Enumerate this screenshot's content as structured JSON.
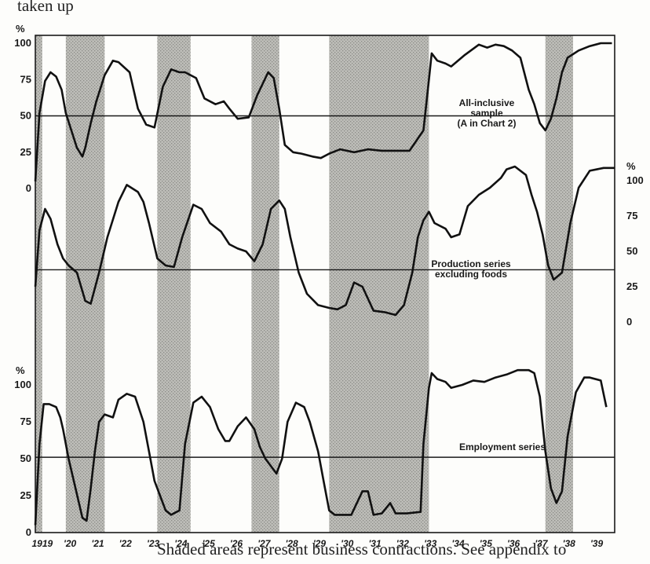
{
  "top_caption": "taken up",
  "bottom_caption": "Shaded areas represent business contractions. See appendix to",
  "chart_data": {
    "type": "line",
    "x_unit": "year",
    "xlim": [
      1919.0,
      1939.9
    ],
    "contractions": [
      [
        1919.0,
        1919.25
      ],
      [
        1920.1,
        1921.5
      ],
      [
        1923.4,
        1924.6
      ],
      [
        1926.8,
        1927.8
      ],
      [
        1929.6,
        1933.2
      ],
      [
        1937.4,
        1938.4
      ]
    ],
    "x_tick_labels": [
      {
        "x": 1919.25,
        "label": "1919"
      },
      {
        "x": 1920.25,
        "label": "'20"
      },
      {
        "x": 1921.25,
        "label": "'21"
      },
      {
        "x": 1922.25,
        "label": "'22"
      },
      {
        "x": 1923.25,
        "label": "'23"
      },
      {
        "x": 1924.25,
        "label": "'24"
      },
      {
        "x": 1925.25,
        "label": "'25"
      },
      {
        "x": 1926.25,
        "label": "'26"
      },
      {
        "x": 1927.25,
        "label": "'27"
      },
      {
        "x": 1928.25,
        "label": "'28"
      },
      {
        "x": 1929.25,
        "label": "'29"
      },
      {
        "x": 1930.25,
        "label": "'30"
      },
      {
        "x": 1931.25,
        "label": "'31"
      },
      {
        "x": 1932.25,
        "label": "'32"
      },
      {
        "x": 1933.25,
        "label": "'33"
      },
      {
        "x": 1934.25,
        "label": "'34"
      },
      {
        "x": 1935.25,
        "label": "'35"
      },
      {
        "x": 1936.25,
        "label": "'36"
      },
      {
        "x": 1937.25,
        "label": "'37"
      },
      {
        "x": 1938.25,
        "label": "'38"
      },
      {
        "x": 1939.25,
        "label": "'39"
      }
    ],
    "panels": [
      {
        "name": "all-inclusive",
        "label_lines": [
          "All-inclusive",
          "sample",
          "(A in Chart 2)"
        ],
        "y_unit_label": "%",
        "y_ticks": [
          "100",
          "75",
          "50",
          "25",
          "0"
        ],
        "axis_side": "left",
        "ref_level": 50,
        "x": [
          1919.0,
          1919.15,
          1919.35,
          1919.55,
          1919.75,
          1919.95,
          1920.1,
          1920.3,
          1920.5,
          1920.7,
          1920.8,
          1921.0,
          1921.2,
          1921.5,
          1921.8,
          1922.0,
          1922.4,
          1922.7,
          1923.0,
          1923.3,
          1923.6,
          1923.9,
          1924.2,
          1924.4,
          1924.8,
          1925.1,
          1925.5,
          1925.8,
          1926.0,
          1926.3,
          1926.7,
          1927.0,
          1927.4,
          1927.6,
          1927.8,
          1928.0,
          1928.3,
          1928.6,
          1929.0,
          1929.3,
          1929.6,
          1930.0,
          1930.5,
          1931.0,
          1931.5,
          1932.0,
          1932.5,
          1933.0,
          1933.2,
          1933.3,
          1933.5,
          1933.8,
          1934.0,
          1934.5,
          1935.0,
          1935.3,
          1935.6,
          1935.9,
          1936.2,
          1936.5,
          1936.8,
          1937.0,
          1937.2,
          1937.4,
          1937.6,
          1937.8,
          1938.0,
          1938.2,
          1938.6,
          1939.0,
          1939.4,
          1939.8
        ],
        "y": [
          5,
          52,
          74,
          80,
          77,
          68,
          52,
          40,
          28,
          22,
          28,
          45,
          60,
          78,
          88,
          87,
          80,
          55,
          44,
          42,
          70,
          82,
          80,
          80,
          76,
          62,
          58,
          60,
          55,
          48,
          49,
          64,
          80,
          76,
          55,
          30,
          25,
          24,
          22,
          21,
          24,
          27,
          25,
          27,
          26,
          26,
          26,
          40,
          75,
          93,
          88,
          86,
          84,
          92,
          99,
          97,
          99,
          98,
          95,
          90,
          68,
          58,
          45,
          40,
          48,
          62,
          80,
          90,
          95,
          98,
          100,
          100
        ]
      },
      {
        "name": "production",
        "label_lines": [
          "Production series",
          "excluding foods"
        ],
        "y_unit_label": "%",
        "y_ticks": [
          "100",
          "75",
          "50",
          "25",
          "0"
        ],
        "axis_side": "right",
        "ref_level": 37,
        "x": [
          1919.0,
          1919.15,
          1919.35,
          1919.55,
          1919.8,
          1920.0,
          1920.2,
          1920.5,
          1920.8,
          1921.0,
          1921.3,
          1921.6,
          1922.0,
          1922.3,
          1922.7,
          1922.9,
          1923.1,
          1923.4,
          1923.7,
          1924.0,
          1924.3,
          1924.7,
          1925.0,
          1925.3,
          1925.7,
          1926.0,
          1926.3,
          1926.6,
          1926.9,
          1927.2,
          1927.5,
          1927.8,
          1928.0,
          1928.2,
          1928.5,
          1928.8,
          1929.2,
          1929.6,
          1929.9,
          1930.2,
          1930.5,
          1930.8,
          1931.2,
          1931.6,
          1932.0,
          1932.3,
          1932.6,
          1932.8,
          1933.0,
          1933.2,
          1933.4,
          1933.8,
          1934.0,
          1934.3,
          1934.6,
          1935.0,
          1935.4,
          1935.8,
          1936.0,
          1936.3,
          1936.7,
          1936.9,
          1937.1,
          1937.3,
          1937.5,
          1937.7,
          1938.0,
          1938.3,
          1938.6,
          1939.0,
          1939.5,
          1939.9
        ],
        "y": [
          25,
          65,
          80,
          73,
          55,
          45,
          40,
          35,
          15,
          13,
          35,
          60,
          85,
          97,
          92,
          85,
          70,
          45,
          40,
          39,
          60,
          83,
          80,
          70,
          64,
          55,
          52,
          50,
          43,
          55,
          80,
          86,
          80,
          60,
          35,
          20,
          12,
          10,
          9,
          12,
          28,
          25,
          8,
          7,
          5,
          12,
          35,
          60,
          72,
          78,
          70,
          66,
          60,
          62,
          82,
          90,
          95,
          102,
          108,
          110,
          104,
          90,
          78,
          62,
          40,
          30,
          35,
          70,
          95,
          107,
          109,
          109
        ]
      },
      {
        "name": "employment",
        "label_lines": [
          "Employment series"
        ],
        "y_unit_label": "%",
        "y_ticks": [
          "100",
          "75",
          "50",
          "25",
          "0"
        ],
        "axis_side": "left",
        "ref_level": 51,
        "x": [
          1919.0,
          1919.15,
          1919.3,
          1919.5,
          1919.75,
          1919.9,
          1920.0,
          1920.2,
          1920.45,
          1920.7,
          1920.85,
          1921.0,
          1921.15,
          1921.3,
          1921.5,
          1921.8,
          1922.0,
          1922.3,
          1922.6,
          1922.9,
          1923.1,
          1923.3,
          1923.5,
          1923.7,
          1923.9,
          1924.2,
          1924.4,
          1924.7,
          1925.0,
          1925.3,
          1925.6,
          1925.85,
          1926.0,
          1926.3,
          1926.6,
          1926.9,
          1927.1,
          1927.3,
          1927.5,
          1927.7,
          1927.9,
          1928.1,
          1928.4,
          1928.7,
          1928.9,
          1929.2,
          1929.4,
          1929.6,
          1929.8,
          1930.0,
          1930.4,
          1930.8,
          1931.0,
          1931.2,
          1931.5,
          1931.8,
          1932.0,
          1932.4,
          1932.9,
          1933.0,
          1933.2,
          1933.3,
          1933.5,
          1933.8,
          1934.0,
          1934.4,
          1934.8,
          1935.2,
          1935.6,
          1936.0,
          1936.4,
          1936.8,
          1937.0,
          1937.2,
          1937.4,
          1937.6,
          1937.8,
          1938.0,
          1938.2,
          1938.5,
          1938.8,
          1939.0,
          1939.4,
          1939.6
        ],
        "y": [
          5,
          60,
          87,
          87,
          85,
          78,
          70,
          50,
          30,
          10,
          8,
          30,
          55,
          75,
          80,
          78,
          90,
          94,
          92,
          75,
          55,
          35,
          25,
          15,
          12,
          15,
          60,
          88,
          92,
          85,
          70,
          62,
          62,
          72,
          78,
          70,
          58,
          50,
          45,
          40,
          50,
          75,
          88,
          85,
          75,
          55,
          35,
          15,
          12,
          12,
          12,
          28,
          28,
          12,
          13,
          20,
          13,
          13,
          14,
          60,
          98,
          108,
          104,
          102,
          98,
          100,
          103,
          102,
          105,
          107,
          110,
          110,
          108,
          92,
          55,
          30,
          20,
          28,
          65,
          95,
          105,
          105,
          103,
          85
        ]
      }
    ]
  }
}
